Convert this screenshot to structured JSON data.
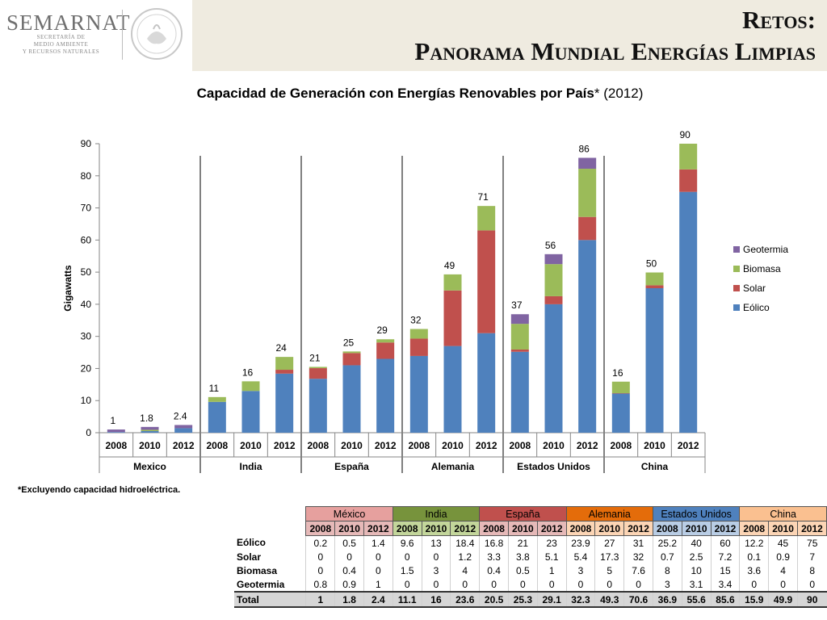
{
  "header": {
    "logo_text": "SEMARNAT",
    "logo_sub_lines": [
      "SECRETARÍA DE",
      "MEDIO AMBIENTE",
      "Y RECURSOS NATURALES"
    ],
    "title_line1": "Retos:",
    "title_line2": "Panorama Mundial Energías Limpias"
  },
  "footnote": "*Excluyendo capacidad hidroeléctrica.",
  "colors": {
    "Eólico": "#4f81bd",
    "Solar": "#c0504d",
    "Biomasa": "#9bbb59",
    "Geotermia": "#8064a2",
    "header_band": "#efebe0"
  },
  "chart_data": {
    "type": "bar",
    "stacked": true,
    "title": "Capacidad de Generación con Energías Renovables por País",
    "title_suffix": "* (2012)",
    "ylabel": "Gigawatts",
    "xlabel": "",
    "ylim": [
      0,
      90
    ],
    "yticks": [
      0,
      10,
      20,
      30,
      40,
      50,
      60,
      70,
      80,
      90
    ],
    "grid": false,
    "legend_position": "right",
    "groups": [
      {
        "name": "Mexico",
        "years": [
          "2008",
          "2010",
          "2012"
        ]
      },
      {
        "name": "India",
        "years": [
          "2008",
          "2010",
          "2012"
        ]
      },
      {
        "name": "España",
        "years": [
          "2008",
          "2010",
          "2012"
        ]
      },
      {
        "name": "Alemania",
        "years": [
          "2008",
          "2010",
          "2012"
        ]
      },
      {
        "name": "Estados Unidos",
        "years": [
          "2008",
          "2010",
          "2012"
        ]
      },
      {
        "name": "China",
        "years": [
          "2008",
          "2010",
          "2012"
        ]
      }
    ],
    "series": [
      {
        "name": "Eólico",
        "color": "#4f81bd",
        "values": [
          0.2,
          0.5,
          1.4,
          9.6,
          13,
          18.4,
          16.8,
          21,
          23,
          23.9,
          27,
          31,
          25.2,
          40,
          60,
          12.2,
          45,
          75
        ]
      },
      {
        "name": "Solar",
        "color": "#c0504d",
        "values": [
          0,
          0,
          0,
          0,
          0,
          1.2,
          3.3,
          3.8,
          5.1,
          5.4,
          17.3,
          32,
          0.7,
          2.5,
          7.2,
          0.1,
          0.9,
          7
        ]
      },
      {
        "name": "Biomasa",
        "color": "#9bbb59",
        "values": [
          0,
          0.4,
          0,
          1.5,
          3,
          4,
          0.4,
          0.5,
          1,
          3,
          5,
          7.6,
          8,
          10,
          15,
          3.6,
          4,
          8
        ]
      },
      {
        "name": "Geotermia",
        "color": "#8064a2",
        "values": [
          0.8,
          0.9,
          1,
          0,
          0,
          0,
          0,
          0,
          0,
          0,
          0,
          0,
          3,
          3.1,
          3.4,
          0,
          0,
          0
        ]
      }
    ],
    "legend_order": [
      "Geotermia",
      "Biomasa",
      "Solar",
      "Eólico"
    ],
    "data_labels": [
      "1",
      "1.8",
      "2.4",
      "11",
      "16",
      "24",
      "21",
      "25",
      "29",
      "32",
      "49",
      "71",
      "37",
      "56",
      "86",
      "16",
      "50",
      "90"
    ]
  },
  "table": {
    "groups": [
      {
        "name": "México",
        "color": "#e6a09e"
      },
      {
        "name": "India",
        "color": "#77933c"
      },
      {
        "name": "España",
        "color": "#c0504d"
      },
      {
        "name": "Alemania",
        "color": "#e46c0a"
      },
      {
        "name": "Estados Unidos",
        "color": "#4f81bd"
      },
      {
        "name": "China",
        "color": "#fac090"
      }
    ],
    "year_colors": [
      "#e6b9b8",
      "#c3d69b",
      "#e6b9b8",
      "#fcd5b5",
      "#b9cde5",
      "#fcd5b5"
    ],
    "years": [
      "2008",
      "2010",
      "2012"
    ],
    "rows": [
      {
        "label": "Eólico",
        "values": [
          "0.2",
          "0.5",
          "1.4",
          "9.6",
          "13",
          "18.4",
          "16.8",
          "21",
          "23",
          "23.9",
          "27",
          "31",
          "25.2",
          "40",
          "60",
          "12.2",
          "45",
          "75"
        ]
      },
      {
        "label": "Solar",
        "values": [
          "0",
          "0",
          "0",
          "0",
          "0",
          "1.2",
          "3.3",
          "3.8",
          "5.1",
          "5.4",
          "17.3",
          "32",
          "0.7",
          "2.5",
          "7.2",
          "0.1",
          "0.9",
          "7"
        ]
      },
      {
        "label": "Biomasa",
        "values": [
          "0",
          "0.4",
          "0",
          "1.5",
          "3",
          "4",
          "0.4",
          "0.5",
          "1",
          "3",
          "5",
          "7.6",
          "8",
          "10",
          "15",
          "3.6",
          "4",
          "8"
        ]
      },
      {
        "label": "Geotermia",
        "values": [
          "0.8",
          "0.9",
          "1",
          "0",
          "0",
          "0",
          "0",
          "0",
          "0",
          "0",
          "0",
          "0",
          "3",
          "3.1",
          "3.4",
          "0",
          "0",
          "0"
        ]
      }
    ],
    "total": {
      "label": "Total",
      "values": [
        "1",
        "1.8",
        "2.4",
        "11.1",
        "16",
        "23.6",
        "20.5",
        "25.3",
        "29.1",
        "32.3",
        "49.3",
        "70.6",
        "36.9",
        "55.6",
        "85.6",
        "15.9",
        "49.9",
        "90"
      ]
    }
  }
}
